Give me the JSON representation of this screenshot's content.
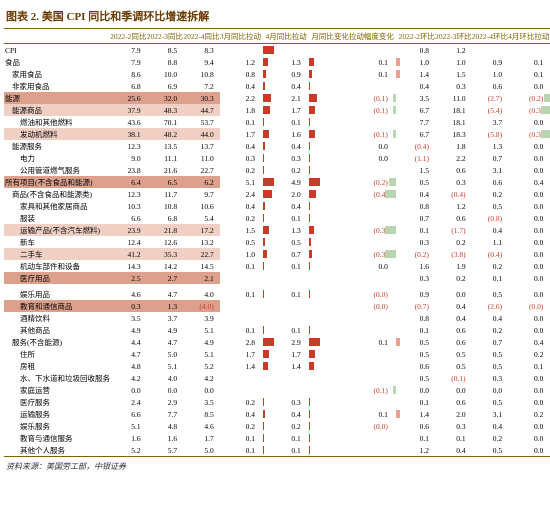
{
  "title": "图表 2. 美国 CPI 同比和季调环比增速拆解",
  "source": "资料来源：美国劳工部，中银证券",
  "columns": [
    "",
    "2022-2同比",
    "2022-3同比",
    "2022-4同比",
    "3月同比拉动",
    "4月同比拉动",
    "月同比变化",
    "拉动幅度变化",
    "2022-2环比",
    "2022-3环比",
    "2022-4环比",
    "4月环比拉动"
  ],
  "barCols": [
    4,
    5,
    7,
    11
  ],
  "barScales": {
    "4": 3,
    "5": 3,
    "7": 0.3,
    "11": 0.3
  },
  "barMaxPx": 11,
  "colors": {
    "pos": "#c83a2a",
    "neg": "#a8c4a0",
    "posLight": "#e8a090",
    "negLight": "#b8d4b0",
    "hl": "#dca08c",
    "hl2": "#f0d0c4",
    "rule": "#806000"
  },
  "rows": [
    {
      "l": "CPI",
      "v": [
        7.9,
        8.5,
        8.3,
        "",
        "",
        "",
        "",
        0.8,
        1.2,
        "",
        ""
      ],
      "bar": {
        "4": 8.3,
        "5": ""
      }
    },
    {
      "l": "食品",
      "v": [
        7.9,
        8.8,
        9.4,
        1.2,
        1.3,
        "",
        0.1,
        1.0,
        1.0,
        0.9,
        0.1
      ]
    },
    {
      "l": "家用食品",
      "i": 1,
      "v": [
        8.6,
        10.0,
        10.8,
        0.8,
        0.9,
        "",
        0.1,
        1.4,
        1.5,
        1.0,
        0.1
      ]
    },
    {
      "l": "非家用食品",
      "i": 1,
      "v": [
        6.8,
        6.9,
        7.2,
        0.4,
        0.4,
        "",
        "",
        0.4,
        0.3,
        0.6,
        0.0
      ]
    },
    {
      "l": "能源",
      "hl": 1,
      "v": [
        25.6,
        32.0,
        30.3,
        2.2,
        2.1,
        "",
        [
          -0.1
        ],
        3.5,
        11.0,
        [
          -2.7
        ],
        [
          -0.2
        ]
      ]
    },
    {
      "l": "能源商品",
      "i": 1,
      "hl": 2,
      "v": [
        37.9,
        48.3,
        44.7,
        1.8,
        1.7,
        "",
        [
          -0.1
        ],
        6.7,
        18.1,
        [
          -5.4
        ],
        [
          -0.3
        ]
      ]
    },
    {
      "l": "燃油和其他燃料",
      "i": 2,
      "v": [
        43.6,
        70.1,
        53.7,
        0.1,
        0.1,
        "",
        "",
        7.7,
        18.1,
        3.7,
        0.0
      ]
    },
    {
      "l": "发动机燃料",
      "i": 2,
      "hl": 2,
      "v": [
        38.1,
        48.2,
        44.0,
        1.7,
        1.6,
        "",
        [
          -0.1
        ],
        6.7,
        18.3,
        [
          -5.8
        ],
        [
          -0.3
        ]
      ]
    },
    {
      "l": "能源服务",
      "i": 1,
      "v": [
        12.3,
        13.5,
        13.7,
        0.4,
        0.4,
        "",
        0.0,
        [
          -0.4
        ],
        1.8,
        1.3,
        0.0
      ]
    },
    {
      "l": "电力",
      "i": 2,
      "v": [
        9.0,
        11.1,
        11.0,
        0.3,
        0.3,
        "",
        0.0,
        [
          -1.1
        ],
        2.2,
        0.7,
        0.0
      ]
    },
    {
      "l": "公用管道燃气服务",
      "i": 2,
      "v": [
        23.8,
        21.6,
        22.7,
        0.2,
        0.2,
        "",
        "",
        1.5,
        0.6,
        3.1,
        0.0
      ]
    },
    {
      "l": "所有项目(不含食品和能源)",
      "hl": 1,
      "v": [
        6.4,
        6.5,
        6.2,
        5.1,
        4.9,
        "",
        [
          -0.2
        ],
        0.5,
        0.3,
        0.6,
        0.4
      ]
    },
    {
      "l": "商品(不含食品和能源类)",
      "i": 1,
      "v": [
        12.3,
        11.7,
        9.7,
        2.4,
        2.0,
        "",
        [
          -0.4
        ],
        0.4,
        [
          -0.4
        ],
        0.2,
        0.0
      ]
    },
    {
      "l": "家具和其他家居商品",
      "i": 2,
      "v": [
        10.3,
        10.8,
        10.6,
        0.4,
        0.4,
        "",
        "",
        0.8,
        1.2,
        0.5,
        0.0
      ]
    },
    {
      "l": "服装",
      "i": 2,
      "v": [
        6.6,
        6.8,
        5.4,
        0.2,
        0.1,
        "",
        "",
        0.7,
        0.6,
        [
          -0.8
        ],
        0.0
      ]
    },
    {
      "l": "运输产品(不含汽车燃料)",
      "i": 2,
      "hl": 2,
      "v": [
        23.9,
        21.8,
        17.2,
        1.5,
        1.3,
        "",
        [
          -0.3
        ],
        0.1,
        [
          -1.7
        ],
        0.4,
        0.0
      ]
    },
    {
      "l": "新车",
      "i": 2,
      "v": [
        12.4,
        12.6,
        13.2,
        0.5,
        0.5,
        "",
        "",
        0.3,
        0.2,
        1.1,
        0.0
      ]
    },
    {
      "l": "二手车",
      "i": 2,
      "hl": 2,
      "v": [
        41.2,
        35.3,
        22.7,
        1.0,
        0.7,
        "",
        [
          -0.3
        ],
        [
          -0.2
        ],
        [
          -3.8
        ],
        [
          -0.4
        ],
        0.0
      ]
    },
    {
      "l": "机动车部件和设备",
      "i": 2,
      "v": [
        14.3,
        14.2,
        14.5,
        0.1,
        0.1,
        "",
        0.0,
        1.6,
        1.9,
        0.2,
        0.0
      ]
    },
    {
      "l": "医疗用品",
      "i": 2,
      "hl": 1,
      "v": [
        2.5,
        2.7,
        2.1,
        "",
        "",
        "",
        "",
        0.3,
        0.2,
        0.1,
        0.0
      ]
    },
    {
      "sep": 1
    },
    {
      "l": "娱乐用品",
      "i": 2,
      "v": [
        4.6,
        4.7,
        4.0,
        0.1,
        0.1,
        "",
        [
          0.0
        ],
        0.9,
        0.0,
        0.5,
        0.0
      ]
    },
    {
      "l": "教育和通信商品",
      "i": 2,
      "hl": 1,
      "v": [
        0.3,
        1.3,
        [
          -4.0
        ],
        "",
        "",
        "",
        [
          0.0
        ],
        [
          -0.7
        ],
        0.4,
        [
          -2.6
        ],
        [
          0.0
        ]
      ]
    },
    {
      "l": "酒精饮料",
      "i": 2,
      "v": [
        3.5,
        3.7,
        3.9,
        "",
        "",
        "",
        "",
        0.8,
        0.4,
        0.4,
        0.0
      ]
    },
    {
      "l": "其他商品",
      "i": 2,
      "v": [
        4.9,
        4.9,
        5.1,
        0.1,
        0.1,
        "",
        "",
        0.1,
        0.6,
        0.2,
        0.0
      ]
    },
    {
      "l": "服务(不含能源)",
      "i": 1,
      "v": [
        4.4,
        4.7,
        4.9,
        2.8,
        2.9,
        "",
        0.1,
        0.5,
        0.6,
        0.7,
        0.4
      ]
    },
    {
      "l": "住所",
      "i": 2,
      "v": [
        4.7,
        5.0,
        5.1,
        1.7,
        1.7,
        "",
        "",
        0.5,
        0.5,
        0.5,
        0.2
      ]
    },
    {
      "l": "房租",
      "i": 2,
      "v": [
        4.8,
        5.1,
        5.2,
        1.4,
        1.4,
        "",
        "",
        0.6,
        0.5,
        0.5,
        0.1
      ]
    },
    {
      "l": "水、下水道和垃圾回收服务",
      "i": 2,
      "v": [
        4.2,
        4.0,
        4.2,
        "",
        "",
        "",
        "",
        0.5,
        [
          -0.1
        ],
        0.3,
        0.0
      ]
    },
    {
      "l": "家庭运营",
      "i": 2,
      "v": [
        0.0,
        0.0,
        0.0,
        "",
        "",
        "",
        [
          -0.1
        ],
        0.0,
        0.0,
        0.0,
        0.0
      ]
    },
    {
      "l": "医疗服务",
      "i": 2,
      "v": [
        2.4,
        2.9,
        3.5,
        0.2,
        0.3,
        "",
        "",
        0.1,
        0.6,
        0.5,
        0.0
      ]
    },
    {
      "l": "运输服务",
      "i": 2,
      "v": [
        6.6,
        7.7,
        8.5,
        0.4,
        0.4,
        "",
        0.1,
        1.4,
        2.0,
        3.1,
        0.2
      ]
    },
    {
      "l": "娱乐服务",
      "i": 2,
      "v": [
        5.1,
        4.8,
        4.6,
        0.2,
        0.2,
        "",
        [
          0.0
        ],
        0.6,
        0.3,
        0.4,
        0.0
      ]
    },
    {
      "l": "教育与通信服务",
      "i": 2,
      "v": [
        1.6,
        1.6,
        1.7,
        0.1,
        0.1,
        "",
        "",
        0.1,
        0.1,
        0.2,
        0.0
      ]
    },
    {
      "l": "其他个人服务",
      "i": 2,
      "v": [
        5.2,
        5.7,
        5.0,
        0.1,
        0.1,
        "",
        "",
        1.2,
        0.4,
        0.5,
        0.0
      ],
      "last": 1
    }
  ]
}
